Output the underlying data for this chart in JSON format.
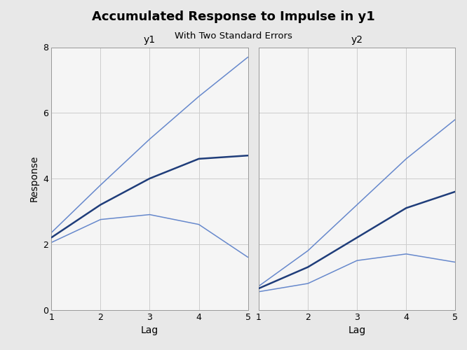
{
  "title": "Accumulated Response to Impulse in y1",
  "subtitle": "With Two Standard Errors",
  "xlabel": "Lag",
  "ylabel": "Response",
  "lags": [
    1,
    2,
    3,
    4,
    5
  ],
  "y1_main": [
    2.2,
    3.2,
    4.0,
    4.6,
    4.7
  ],
  "y1_upper": [
    2.35,
    3.8,
    5.2,
    6.5,
    7.7
  ],
  "y1_lower": [
    2.05,
    2.75,
    2.9,
    2.6,
    1.6
  ],
  "y2_main": [
    0.65,
    1.3,
    2.2,
    3.1,
    3.6
  ],
  "y2_upper": [
    0.72,
    1.8,
    3.2,
    4.6,
    5.8
  ],
  "y2_lower": [
    0.55,
    0.8,
    1.5,
    1.7,
    1.45
  ],
  "main_color": "#1f3d7a",
  "se_color": "#6688cc",
  "bg_color": "#e8e8e8",
  "plot_bg": "#f5f5f5",
  "grid_color": "#cccccc",
  "ylim": [
    0,
    8
  ],
  "yticks": [
    0,
    2,
    4,
    6,
    8
  ],
  "xlim": [
    1,
    5
  ],
  "xticks": [
    1,
    2,
    3,
    4,
    5
  ],
  "title_fontsize": 13,
  "subtitle_fontsize": 9.5,
  "label_fontsize": 10,
  "tick_fontsize": 9,
  "panel_title_fontsize": 10,
  "main_lw": 1.8,
  "se_lw": 1.1
}
